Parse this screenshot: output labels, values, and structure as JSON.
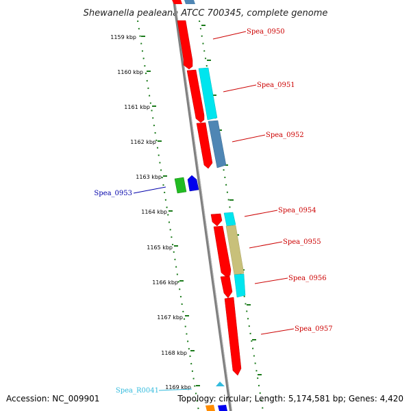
{
  "title": "Shewanella pealeana ATCC 700345, complete genome",
  "footer": {
    "accession": "Accession: NC_009901",
    "topology": "Topology: circular; Length: 5,174,581 bp; Genes: 4,420"
  },
  "kbp_labels": [
    "1159 kbp",
    "1160 kbp",
    "1161 kbp",
    "1162 kbp",
    "1163 kbp",
    "1164 kbp",
    "1165 kbp",
    "1166 kbp",
    "1167 kbp",
    "1168 kbp",
    "1169 kbp"
  ],
  "gene_labels": {
    "spea_0950": "Spea_0950",
    "spea_0951": "Spea_0951",
    "spea_0952": "Spea_0952",
    "spea_0953": "Spea_0953",
    "spea_0954": "Spea_0954",
    "spea_0955": "Spea_0955",
    "spea_0956": "Spea_0956",
    "spea_0957": "Spea_0957",
    "spea_r0041": "Spea_R0041"
  },
  "colors": {
    "backbone": "#808080",
    "tick": "#1a7a1a",
    "cds_red": "#ff0000",
    "cyan": "#00e5ee",
    "steelblue": "#4f86b4",
    "khaki": "#c8c07a",
    "green": "#22bb22",
    "blue": "#0000ee",
    "label_red": "#cc0000",
    "label_blue": "#0000aa",
    "label_cyan": "#33bbdd"
  }
}
